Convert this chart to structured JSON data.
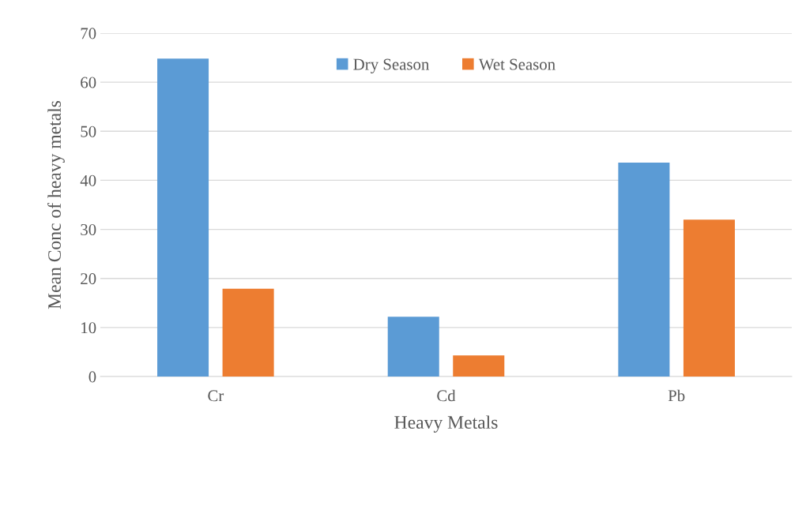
{
  "chart_data": {
    "type": "bar",
    "xlabel": "Heavy Metals",
    "ylabel": "Mean Conc of heavy metals",
    "categories": [
      "Cr",
      "Cd",
      "Pb"
    ],
    "series": [
      {
        "name": "Dry Season",
        "color": "#5b9bd5",
        "values": [
          64.8,
          12.2,
          43.6
        ]
      },
      {
        "name": "Wet Season",
        "color": "#ed7d31",
        "values": [
          17.9,
          4.3,
          32.0
        ]
      }
    ],
    "ylim": [
      0,
      70
    ],
    "yticks": [
      0,
      10,
      20,
      30,
      40,
      50,
      60,
      70
    ],
    "grid": "y",
    "legend": "top"
  }
}
